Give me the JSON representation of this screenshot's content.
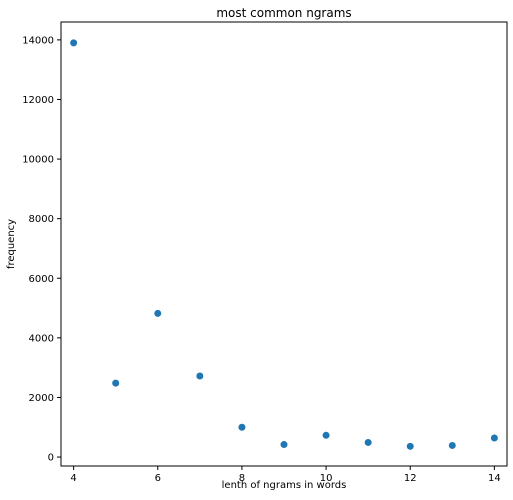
{
  "chart_data": {
    "type": "scatter",
    "title": "most common ngrams",
    "xlabel": "lenth of ngrams in words",
    "ylabel": "frequency",
    "x": [
      4,
      5,
      6,
      7,
      8,
      9,
      10,
      11,
      12,
      13,
      14
    ],
    "y": [
      13900,
      2480,
      4820,
      2720,
      1000,
      420,
      730,
      490,
      360,
      390,
      640
    ],
    "xlim": [
      3.7,
      14.3
    ],
    "ylim": [
      -300,
      14600
    ],
    "xticks": [
      4,
      6,
      8,
      10,
      12,
      14
    ],
    "yticks": [
      0,
      2000,
      4000,
      6000,
      8000,
      10000,
      12000,
      14000
    ],
    "xtick_labels": [
      "4",
      "6",
      "8",
      "10",
      "12",
      "14"
    ],
    "ytick_labels": [
      "0",
      "2000",
      "4000",
      "6000",
      "8000",
      "10000",
      "12000",
      "14000"
    ],
    "marker_color": "#1f77b4",
    "grid": false
  }
}
